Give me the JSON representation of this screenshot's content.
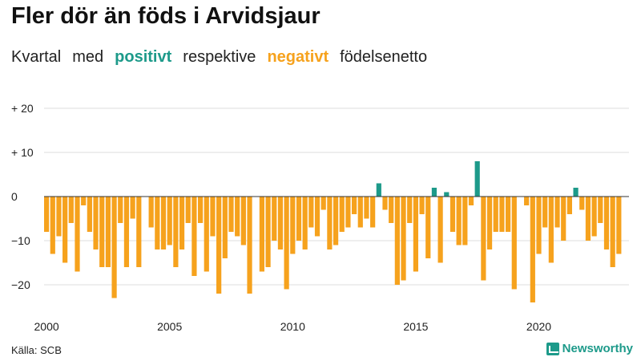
{
  "title": "Fler dör än föds i Arvidsjaur",
  "subtitle": {
    "part1": "Kvartal",
    "part2": "med",
    "positive_word": "positivt",
    "part3": "respektive",
    "negative_word": "negativt",
    "part4": "födelsenetto"
  },
  "source": "Källa: SCB",
  "brand": {
    "name": "Newsworthy",
    "icon": "chart-icon"
  },
  "colors": {
    "positive": "#1d9a8a",
    "negative": "#f6a21d",
    "grid": "#dddddd",
    "zero": "#333333"
  },
  "chart_data": {
    "type": "bar",
    "title": "Fler dör än föds i Arvidsjaur",
    "xlabel": "",
    "ylabel": "",
    "ylim": [
      -25,
      20
    ],
    "y_ticks": [
      {
        "value": 20,
        "label": "+ 20"
      },
      {
        "value": 10,
        "label": "+ 10"
      },
      {
        "value": 0,
        "label": "0"
      },
      {
        "value": -10,
        "label": "−10"
      },
      {
        "value": -20,
        "label": "−20"
      }
    ],
    "x_ticks": [
      "2000",
      "2005",
      "2010",
      "2015",
      "2020"
    ],
    "start_year": 2000,
    "start_quarter": 1,
    "grid": true,
    "values": [
      -8,
      -13,
      -9,
      -15,
      -6,
      -17,
      -2,
      -8,
      -12,
      -16,
      -16,
      -23,
      -6,
      -16,
      -5,
      -16,
      0,
      -7,
      -12,
      -12,
      -11,
      -16,
      -12,
      -6,
      -18,
      -6,
      -17,
      -9,
      -22,
      -14,
      -8,
      -9,
      -11,
      -22,
      0,
      -17,
      -16,
      -10,
      -12,
      -21,
      -13,
      -10,
      -12,
      -7,
      -9,
      -3,
      -12,
      -11,
      -8,
      -7,
      -4,
      -7,
      -5,
      -7,
      3,
      -3,
      -6,
      -20,
      -19,
      -6,
      -17,
      -4,
      -14,
      2,
      -15,
      1,
      -8,
      -11,
      -11,
      -2,
      8,
      -19,
      -12,
      -8,
      -8,
      -8,
      -21,
      0,
      -2,
      -24,
      -13,
      -7,
      -15,
      -7,
      -10,
      -4,
      2,
      -3,
      -10,
      -9,
      -6,
      -12,
      -16,
      -13
    ]
  }
}
